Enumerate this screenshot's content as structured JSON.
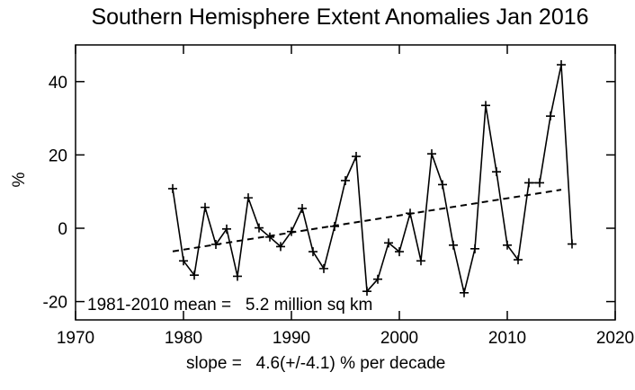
{
  "chart_data": {
    "type": "line",
    "title": "Southern Hemisphere Extent Anomalies Jan 2016",
    "xlabel": "",
    "ylabel": "%",
    "xlim": [
      1970,
      2020
    ],
    "ylim": [
      -25,
      50
    ],
    "x_ticks": [
      1970,
      1980,
      1990,
      2000,
      2010,
      2020
    ],
    "x_tick_labels": [
      "1970",
      "1980",
      "1990",
      "2000",
      "2010",
      "2020"
    ],
    "y_ticks": [
      -20,
      0,
      20,
      40
    ],
    "y_tick_labels": [
      "-20",
      "0",
      "20",
      "40"
    ],
    "grid": false,
    "legend": "none",
    "series": [
      {
        "style": "solid line with plus markers",
        "color": "#000000",
        "x": [
          1979,
          1980,
          1981,
          1982,
          1983,
          1984,
          1985,
          1986,
          1987,
          1988,
          1989,
          1990,
          1991,
          1992,
          1993,
          1994,
          1995,
          1996,
          1997,
          1998,
          1999,
          2000,
          2001,
          2002,
          2003,
          2004,
          2005,
          2006,
          2007,
          2008,
          2009,
          2010,
          2011,
          2012,
          2013,
          2014,
          2015,
          2016
        ],
        "values": [
          10.8,
          -8.9,
          -12.8,
          5.7,
          -4.4,
          -0.2,
          -13.1,
          8.3,
          0.1,
          -2.4,
          -5.0,
          -0.9,
          5.4,
          -6.4,
          -11.0,
          0.5,
          13.0,
          19.6,
          -17.2,
          -13.9,
          -4.0,
          -6.4,
          4.1,
          -8.9,
          20.3,
          11.9,
          -4.6,
          -17.6,
          -5.6,
          33.5,
          15.4,
          -4.6,
          -8.6,
          12.4,
          12.4,
          30.6,
          44.6,
          -4.3
        ]
      },
      {
        "style": "dashed trend line",
        "color": "#000000",
        "x": [
          1979,
          2015
        ],
        "values": [
          -6.3,
          10.5
        ]
      }
    ],
    "annotations": {
      "mean": "1981-2010 mean =   5.2 million sq km",
      "slope": "slope =   4.6(+/-4.1) % per decade"
    }
  }
}
